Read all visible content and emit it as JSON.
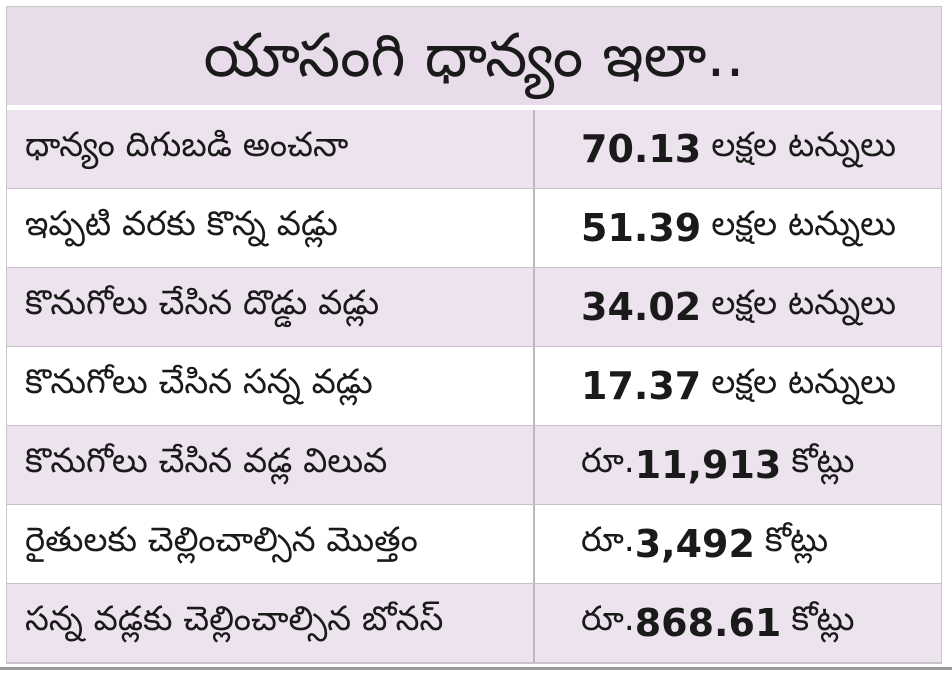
{
  "title": "యాసంగి ధాన్యం ఇలా..",
  "rows": [
    {
      "label": "ధాన్యం దిగుబడి అంచనా",
      "prefix": "",
      "value": "70.13",
      "unit": "లక్షల టన్నులు"
    },
    {
      "label": "ఇప్పటి వరకు కొన్న వడ్లు",
      "prefix": "",
      "value": "51.39",
      "unit": "లక్షల టన్నులు"
    },
    {
      "label": "కొనుగోలు చేసిన దొడ్డు వడ్లు",
      "prefix": "",
      "value": "34.02",
      "unit": "లక్షల టన్నులు"
    },
    {
      "label": "కొనుగోలు చేసిన సన్న వడ్లు",
      "prefix": "",
      "value": "17.37",
      "unit": "లక్షల టన్నులు"
    },
    {
      "label": "కొనుగోలు చేసిన వడ్ల విలువ",
      "prefix": "రూ.",
      "value": "11,913",
      "unit": "కోట్లు"
    },
    {
      "label": "రైతులకు చెల్లించాల్సిన మొత్తం",
      "prefix": "రూ.",
      "value": "3,492",
      "unit": "కోట్లు"
    },
    {
      "label": "సన్న వడ్లకు చెల్లించాల్సిన బోనస్",
      "prefix": "రూ.",
      "value": "868.61",
      "unit": "కోట్లు"
    }
  ],
  "colors": {
    "title_band": "#e8dcea",
    "alt_row": "#ede3ef",
    "plain_row": "#ffffff",
    "text": "#1a1a1a"
  }
}
